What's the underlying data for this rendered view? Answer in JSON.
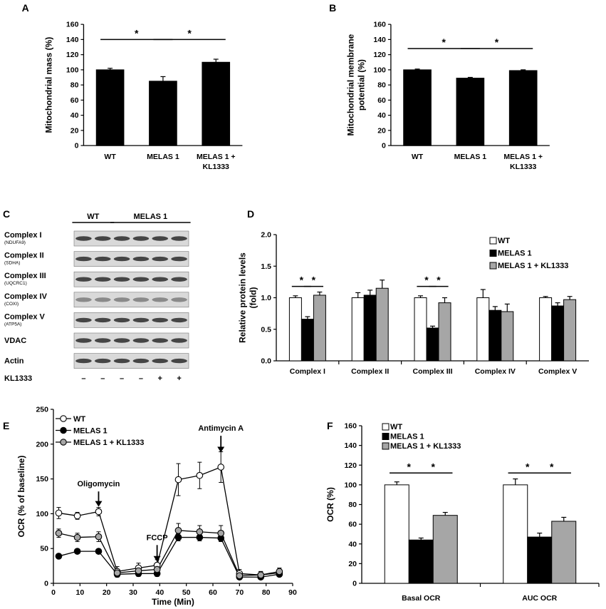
{
  "colors": {
    "wt": "#ffffff",
    "melas": "#000000",
    "kl": "#a6a6a6",
    "axis": "#000000",
    "gel_bg": "#d9d9d9",
    "band": "#2a2a2a"
  },
  "chart_data": [
    {
      "panel": "A",
      "type": "bar",
      "categories": [
        "WT",
        "MELAS 1",
        "MELAS 1 +\nKL1333"
      ],
      "values": [
        100,
        85,
        110
      ],
      "errors": [
        2,
        6,
        4
      ],
      "bar_color": "#000000",
      "ylabel": "Mitochondrial mass (%)",
      "ylim": [
        0,
        160
      ],
      "yticks": [
        0,
        20,
        40,
        60,
        80,
        100,
        120,
        140,
        160
      ],
      "significance": [
        {
          "from": 0,
          "to": 1,
          "label": "*",
          "y": 140
        },
        {
          "from": 1,
          "to": 2,
          "label": "*",
          "y": 140
        }
      ]
    },
    {
      "panel": "B",
      "type": "bar",
      "categories": [
        "WT",
        "MELAS 1",
        "MELAS 1 +\nKL1333"
      ],
      "values": [
        100,
        89,
        99
      ],
      "errors": [
        1,
        1,
        1
      ],
      "bar_color": "#000000",
      "ylabel": "Mitochondrial membrane\npotential (%)",
      "ylim": [
        0,
        160
      ],
      "yticks": [
        0,
        20,
        40,
        60,
        80,
        100,
        120,
        140,
        160
      ],
      "significance": [
        {
          "from": 0,
          "to": 1,
          "label": "*",
          "y": 128
        },
        {
          "from": 1,
          "to": 2,
          "label": "*",
          "y": 128
        }
      ]
    },
    {
      "panel": "D",
      "type": "bar",
      "categories": [
        "Complex I",
        "Complex II",
        "Complex III",
        "Complex IV",
        "Complex V"
      ],
      "series": [
        {
          "name": "WT",
          "values": [
            1.0,
            1.0,
            1.0,
            1.0,
            1.0
          ],
          "errors": [
            0.03,
            0.08,
            0.03,
            0.13,
            0.02
          ]
        },
        {
          "name": "MELAS 1",
          "values": [
            0.66,
            1.04,
            0.52,
            0.8,
            0.87
          ],
          "errors": [
            0.04,
            0.08,
            0.03,
            0.06,
            0.05
          ]
        },
        {
          "name": "MELAS 1 + KL1333",
          "values": [
            1.04,
            1.15,
            0.92,
            0.78,
            0.97
          ],
          "errors": [
            0.05,
            0.13,
            0.08,
            0.12,
            0.05
          ]
        }
      ],
      "ylabel": "Relative protein levels\n(fold)",
      "ylim": [
        0,
        2.0
      ],
      "yticks": [
        "0.0",
        "0.5",
        "1.0",
        "1.5",
        "2.0"
      ],
      "legend": "top-right",
      "significance": [
        {
          "category": 0,
          "from": 0,
          "to": 1,
          "label": "*",
          "y": 1.18
        },
        {
          "category": 0,
          "from": 1,
          "to": 2,
          "label": "*",
          "y": 1.18
        },
        {
          "category": 2,
          "from": 0,
          "to": 1,
          "label": "*",
          "y": 1.18
        },
        {
          "category": 2,
          "from": 1,
          "to": 2,
          "label": "*",
          "y": 1.18
        }
      ]
    },
    {
      "panel": "E",
      "type": "line",
      "x": [
        2,
        9,
        17,
        24,
        32,
        39,
        47,
        55,
        63,
        70,
        78,
        85
      ],
      "series": [
        {
          "name": "WT",
          "values": [
            101,
            97,
            103,
            17,
            22,
            26,
            149,
            155,
            167,
            14,
            12,
            15
          ],
          "errors": [
            8,
            5,
            6,
            7,
            7,
            8,
            23,
            19,
            22,
            6,
            5,
            5
          ]
        },
        {
          "name": "MELAS 1",
          "values": [
            39,
            46,
            46,
            13,
            14,
            14,
            66,
            66,
            65,
            9,
            9,
            13
          ],
          "errors": [
            3,
            3,
            3,
            4,
            4,
            4,
            5,
            5,
            5,
            3,
            3,
            3
          ]
        },
        {
          "name": "MELAS 1 + KL1333",
          "values": [
            72,
            66,
            67,
            15,
            18,
            20,
            76,
            74,
            72,
            11,
            12,
            17
          ],
          "errors": [
            6,
            6,
            7,
            5,
            5,
            6,
            10,
            9,
            11,
            5,
            5,
            5
          ]
        }
      ],
      "xlabel": "Time (Min)",
      "ylabel": "OCR (% of baseline)",
      "xlim": [
        0,
        90
      ],
      "xticks": [
        0,
        10,
        20,
        30,
        40,
        50,
        60,
        70,
        80,
        90
      ],
      "ylim": [
        0,
        250
      ],
      "yticks": [
        0,
        50,
        100,
        150,
        200,
        250
      ],
      "legend": "top-left",
      "annotations": [
        {
          "label": "Oligomycin",
          "x": 17,
          "tail": 132,
          "head": 110
        },
        {
          "label": "FCCP",
          "x": 39,
          "tail": 55,
          "head": 31
        },
        {
          "label": "Antimycin A",
          "x": 63,
          "tail": 212,
          "head": 188
        }
      ]
    },
    {
      "panel": "F",
      "type": "bar",
      "categories": [
        "Basal OCR",
        "AUC OCR"
      ],
      "series": [
        {
          "name": "WT",
          "values": [
            100,
            100
          ],
          "errors": [
            3,
            6
          ]
        },
        {
          "name": "MELAS 1",
          "values": [
            44,
            47
          ],
          "errors": [
            2,
            4
          ]
        },
        {
          "name": "MELAS 1 + KL1333",
          "values": [
            69,
            63
          ],
          "errors": [
            3,
            4
          ]
        }
      ],
      "ylabel": "OCR (%)",
      "ylim": [
        0,
        160
      ],
      "yticks": [
        0,
        20,
        40,
        60,
        80,
        100,
        120,
        140,
        160
      ],
      "legend": "top-left",
      "significance": [
        {
          "category": 0,
          "from": 0,
          "to": 1,
          "label": "*",
          "y": 112
        },
        {
          "category": 0,
          "from": 1,
          "to": 2,
          "label": "*",
          "y": 112
        },
        {
          "category": 1,
          "from": 0,
          "to": 1,
          "label": "*",
          "y": 112
        },
        {
          "category": 1,
          "from": 1,
          "to": 2,
          "label": "*",
          "y": 112
        }
      ]
    }
  ],
  "western_blot": {
    "panel": "C",
    "group_labels": [
      "WT",
      "MELAS 1"
    ],
    "rows": [
      {
        "label": "Complex I",
        "sub": "(NDUFA9)"
      },
      {
        "label": "Complex II",
        "sub": "(SDHA)"
      },
      {
        "label": "Complex III",
        "sub": "(UQCRC1)"
      },
      {
        "label": "Complex IV",
        "sub": "(COXI)"
      },
      {
        "label": "Complex V",
        "sub": "(ATP5A)"
      },
      {
        "label": "VDAC",
        "sub": ""
      },
      {
        "label": "Actin",
        "sub": ""
      }
    ],
    "treatment_label": "KL1333",
    "treatment": [
      "–",
      "–",
      "–",
      "–",
      "+",
      "+"
    ]
  }
}
